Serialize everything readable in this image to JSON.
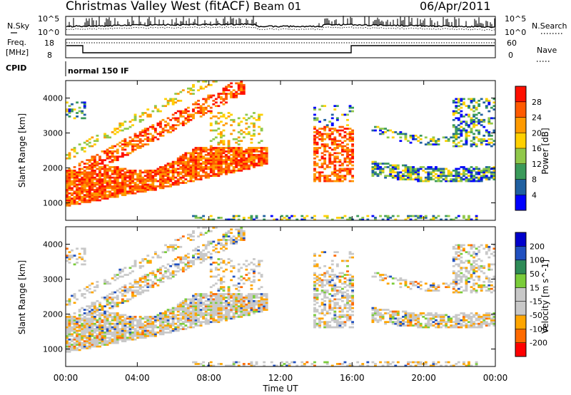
{
  "header": {
    "station": "Christmas Valley West (fitACF)",
    "beam": "Beam 01",
    "date": "06/Apr/2011"
  },
  "panels": {
    "noise": {
      "left_label": "N.Sky",
      "right_label": "N.Search",
      "left_ticks": [
        "10^5",
        "10^0"
      ],
      "right_ticks": [
        "10^5",
        "10^0"
      ]
    },
    "freq": {
      "left_label_1": "Freq.",
      "left_label_2": "[MHz]",
      "right_label": "Nave",
      "left_ticks": [
        "18",
        "8"
      ],
      "right_ticks": [
        "60",
        "0"
      ]
    },
    "cpid": {
      "label": "CPID",
      "value": "normal 150 IF"
    }
  },
  "colors": {
    "power": [
      "#0000ff",
      "#2060a0",
      "#3a9a5a",
      "#90c84a",
      "#ffd000",
      "#ff9a00",
      "#ff5a00",
      "#ff1000"
    ],
    "velocity": [
      "#ff0000",
      "#ff6a00",
      "#ffa500",
      "#c8c8c8",
      "#c8c8c8",
      "#7acc3a",
      "#2e8b57",
      "#2050c0",
      "#0000cc"
    ]
  },
  "chart_data": [
    {
      "type": "heatmap",
      "name": "power",
      "xlabel": "Time UT",
      "ylabel": "Slant Range [km]",
      "x_ticks": [
        "00:00",
        "04:00",
        "08:00",
        "12:00",
        "16:00",
        "20:00",
        "00:00"
      ],
      "xlim_hours": [
        0,
        24
      ],
      "ylim_km": [
        500,
        4500
      ],
      "y_ticks": [
        "1000",
        "2000",
        "3000",
        "4000"
      ],
      "colorbar_label": "Power [dB]",
      "colorbar_ticks": [
        "4",
        "8",
        "12",
        "16",
        "20",
        "24",
        "28"
      ],
      "colorbar_range": [
        0,
        32
      ]
    },
    {
      "type": "heatmap",
      "name": "velocity",
      "xlabel": "Time UT",
      "ylabel": "Slant Range [km]",
      "x_ticks": [
        "00:00",
        "04:00",
        "08:00",
        "12:00",
        "16:00",
        "20:00",
        "00:00"
      ],
      "xlim_hours": [
        0,
        24
      ],
      "ylim_km": [
        500,
        4500
      ],
      "y_ticks": [
        "1000",
        "2000",
        "3000",
        "4000"
      ],
      "colorbar_label": "Velocity [m s^-1]",
      "colorbar_ticks": [
        "200",
        "100",
        "50",
        "15",
        "-15",
        "-50",
        "-100",
        "-200"
      ],
      "colorbar_range": [
        -250,
        250
      ]
    }
  ],
  "axis": {
    "x_title": "Time UT"
  }
}
